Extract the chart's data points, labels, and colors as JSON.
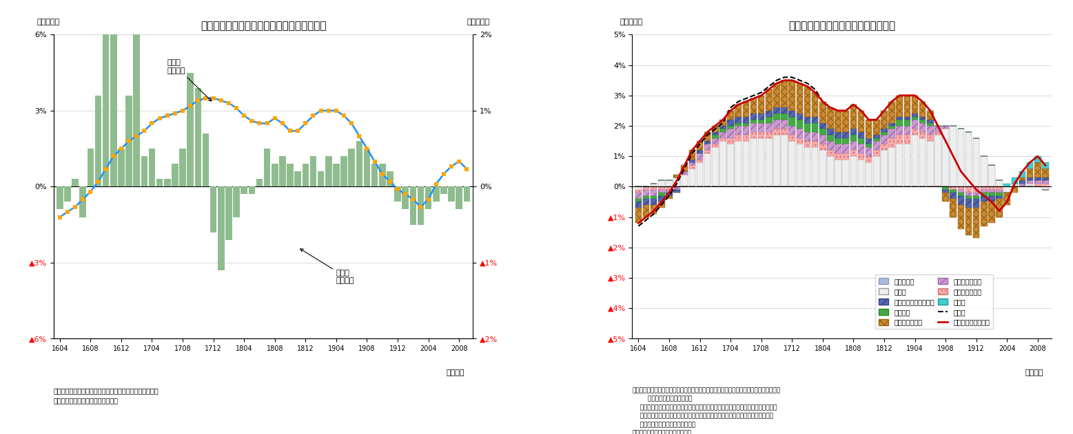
{
  "title1": "国内企業物価指数（前年比・前月比）の推移",
  "title2": "国内企業物価指数の前年比寄与度分解",
  "ylabel1_left": "（前年比）",
  "ylabel1_right": "（前月比）",
  "ylabel2": "（前年比）",
  "xlabel": "（月次）",
  "note1": "（注）消費税を除くベース。前月比は夏季電力料金調整後\n（資料）日本銀行「企業物価指数」",
  "note2": "（注）機械類：はん用機器、生産用機器、業務用機器、電子部品・デバイス、電気機器、\n        情報通信機器、輸送用機器\n    鉄鋼・建材関連：鉄鋼、金属製品、窯業・土石製品、木材・木製品、スクラップ類\n    素材（その他）：化学製品、プラスチック製品、繊維製品、パルプ・紙・同製品\n    その他：その他工業製品、鉱産物\n（資料）日本銀行「企業物価指数」",
  "xtick_labels": [
    "1604",
    "1608",
    "1612",
    "1704",
    "1708",
    "1712",
    "1804",
    "1808",
    "1812",
    "1904",
    "1908",
    "1912",
    "2004",
    "2008"
  ],
  "chart1": {
    "bar_color": "#8fbc8f",
    "line_color": "#1e90ff",
    "marker_color": "#ffa500",
    "ylim_left": [
      -6,
      6
    ],
    "ylim_right": [
      -2,
      2
    ],
    "yticks_left": [
      -6,
      -3,
      0,
      3,
      6
    ],
    "ytick_labels_left": [
      "▲6%",
      "▲3%",
      "0%",
      "3%",
      "6%"
    ],
    "yticks_right": [
      -2,
      -1,
      0,
      1,
      2
    ],
    "ytick_labels_right": [
      "▲2%",
      "▲1%",
      "0%",
      "1%",
      "2%"
    ],
    "bar_data": [
      -0.3,
      -0.2,
      0.1,
      -0.4,
      0.5,
      1.2,
      2.2,
      2.5,
      0.5,
      1.2,
      2.2,
      0.4,
      0.5,
      0.1,
      0.1,
      0.3,
      0.5,
      1.5,
      1.3,
      0.7,
      -0.6,
      -1.1,
      -0.7,
      -0.4,
      -0.1,
      -0.1,
      0.1,
      0.5,
      0.3,
      0.4,
      0.3,
      0.2,
      0.3,
      0.4,
      0.2,
      0.4,
      0.3,
      0.4,
      0.5,
      0.6,
      0.5,
      0.3,
      0.3,
      0.2,
      -0.2,
      -0.3,
      -0.5,
      -0.5,
      -0.3,
      -0.2,
      -0.1,
      -0.2,
      -0.3,
      -0.2
    ],
    "line_yoy": [
      -1.2,
      -1.0,
      -0.8,
      -0.5,
      -0.2,
      0.2,
      0.7,
      1.2,
      1.5,
      1.8,
      2.0,
      2.2,
      2.5,
      2.7,
      2.8,
      2.9,
      3.0,
      3.2,
      3.4,
      3.5,
      3.5,
      3.4,
      3.3,
      3.1,
      2.8,
      2.6,
      2.5,
      2.5,
      2.7,
      2.5,
      2.2,
      2.2,
      2.5,
      2.8,
      3.0,
      3.0,
      3.0,
      2.8,
      2.5,
      2.0,
      1.5,
      1.0,
      0.5,
      0.2,
      -0.1,
      -0.3,
      -0.5,
      -0.8,
      -0.5,
      0.1,
      0.5,
      0.8,
      1.0,
      0.7
    ]
  },
  "chart2": {
    "ytick_labels": [
      "▲5%",
      "▲4%",
      "▲3%",
      "▲2%",
      "▲1%",
      "0%",
      "1%",
      "2%",
      "3%",
      "4%",
      "5%"
    ],
    "colors": {
      "消費増税分": "#aabbdd",
      "電力・都市ガス・水道": "#5566aa",
      "石油・石炭製品": "#cc8833",
      "鉄鋼・建材関連": "#ffaaaa",
      "その他": "#eeeeee",
      "非鉄金属": "#44aa44",
      "素材（その他）": "#cc99cc",
      "機械類": "#44cccc"
    }
  }
}
